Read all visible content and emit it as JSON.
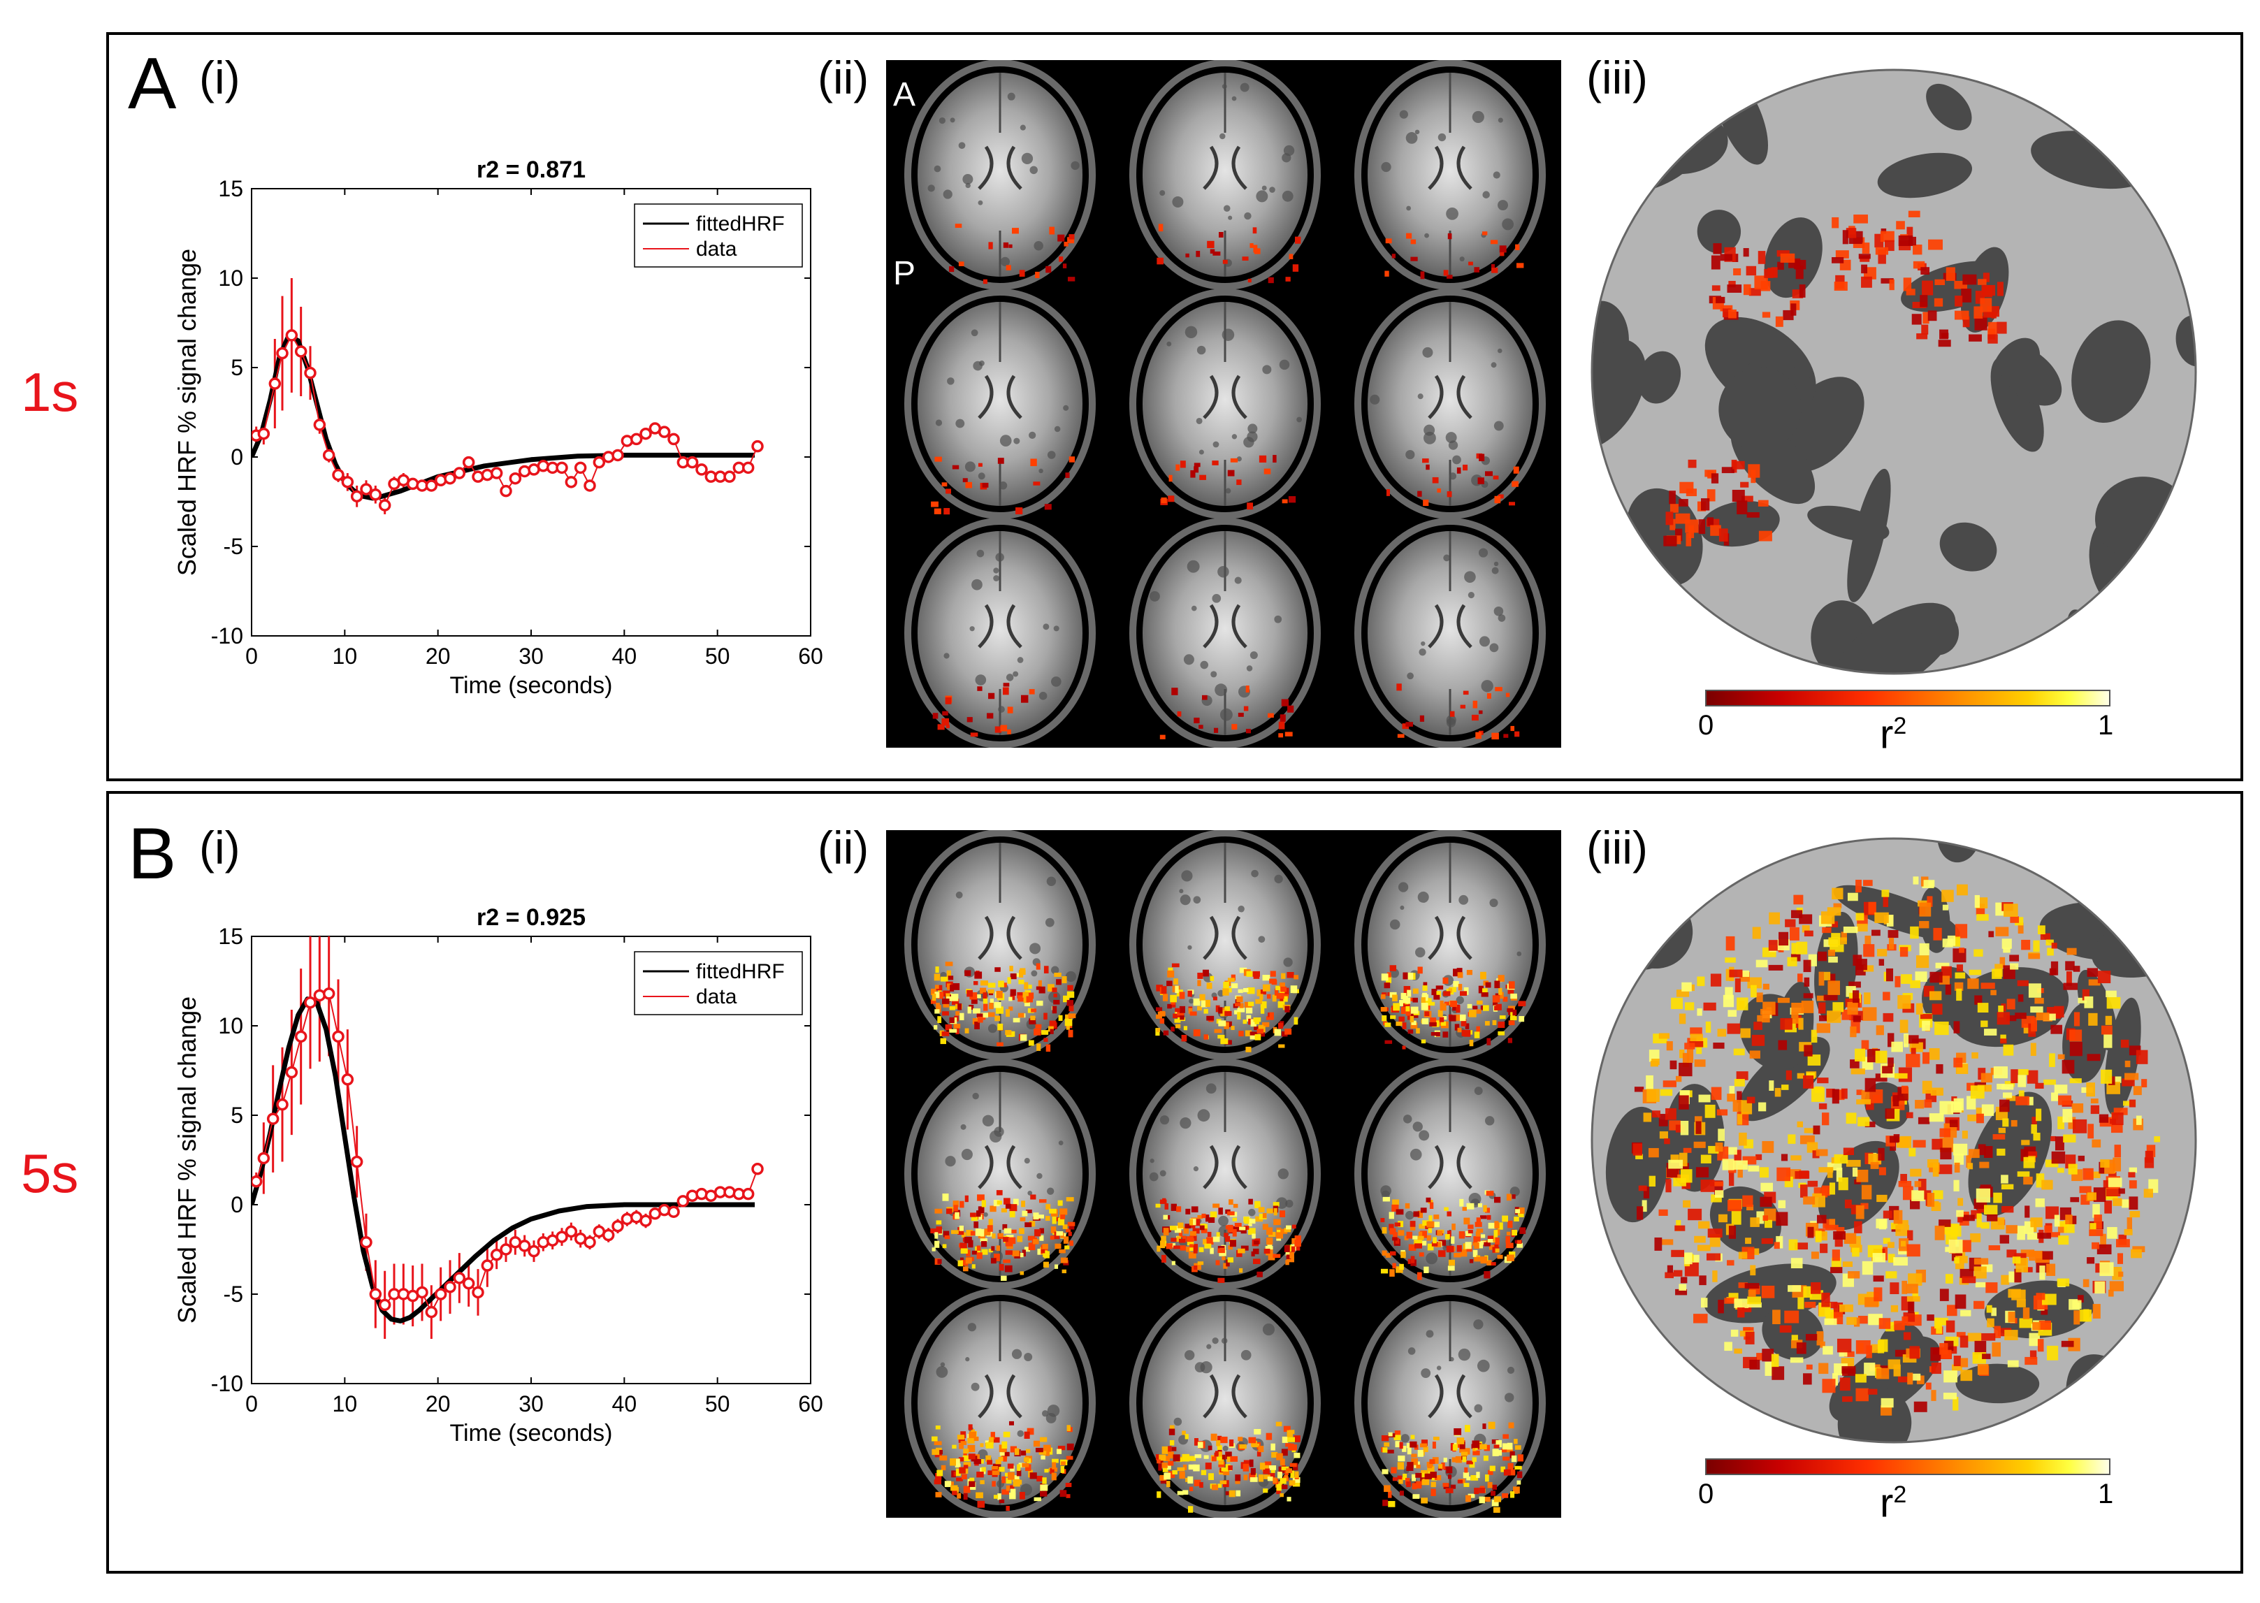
{
  "rows": [
    {
      "row_label": "1s",
      "panel_letter": "A",
      "sub_labels": [
        "(i)",
        "(ii)",
        "(iii)"
      ],
      "brain_orientation": {
        "anterior": "A",
        "posterior": "P"
      },
      "colorbar": {
        "min_label": "0",
        "max_label": "1",
        "label_base": "r",
        "label_exp": "2"
      },
      "activation_level": 0.08,
      "chart": {
        "r2_label": "r2 = 0.871",
        "ylabel": "Scaled HRF % signal change",
        "xlabel": "Time (seconds)"
      }
    },
    {
      "row_label": "5s",
      "panel_letter": "B",
      "sub_labels": [
        "(i)",
        "(ii)",
        "(iii)"
      ],
      "brain_orientation": {
        "anterior": "",
        "posterior": ""
      },
      "colorbar": {
        "min_label": "0",
        "max_label": "1",
        "label_base": "r",
        "label_exp": "2"
      },
      "activation_level": 0.9,
      "chart": {
        "r2_label": "r2 = 0.925",
        "ylabel": "Scaled HRF % signal change",
        "xlabel": "Time (seconds)"
      }
    }
  ],
  "colors": {
    "data": "#e8141b",
    "fit": "#000000",
    "brain_bg": "#000000",
    "flat_light": "#b4b4b4",
    "flat_dark": "#4a4a4a"
  },
  "chart_data": [
    {
      "type": "line",
      "title": "r2 = 0.871",
      "xlabel": "Time (seconds)",
      "ylabel": "Scaled HRF % signal change",
      "xlim": [
        0,
        60
      ],
      "ylim": [
        -10,
        15
      ],
      "xticks": [
        0,
        10,
        20,
        30,
        40,
        50,
        60
      ],
      "yticks": [
        -10,
        -5,
        0,
        5,
        10,
        15
      ],
      "legend": {
        "entries": [
          "fittedHRF",
          "data"
        ],
        "placement": "top-right"
      },
      "series": [
        {
          "name": "fittedHRF",
          "x": [
            0,
            1,
            2,
            3,
            4,
            5,
            6,
            7,
            8,
            9,
            10,
            11,
            12,
            13,
            14,
            16,
            18,
            20,
            25,
            30,
            35,
            40,
            45,
            50,
            54
          ],
          "y": [
            0,
            1.2,
            3.2,
            5.6,
            6.8,
            6.5,
            5.0,
            3.0,
            1.0,
            -0.4,
            -1.4,
            -1.9,
            -2.2,
            -2.3,
            -2.2,
            -1.9,
            -1.5,
            -1.1,
            -0.5,
            -0.15,
            0.05,
            0.1,
            0.1,
            0.1,
            0.1
          ]
        },
        {
          "name": "data",
          "x": [
            0.5,
            1.3,
            2.5,
            3.3,
            4.3,
            5.3,
            6.3,
            7.3,
            8.3,
            9.3,
            10.3,
            11.3,
            12.3,
            13.3,
            14.3,
            15.3,
            16.3,
            17.3,
            18.3,
            19.3,
            20.3,
            21.3,
            22.3,
            23.3,
            24.3,
            25.3,
            26.3,
            27.3,
            28.3,
            29.3,
            30.3,
            31.3,
            32.3,
            33.3,
            34.3,
            35.3,
            36.3,
            37.3,
            38.3,
            39.3,
            40.3,
            41.3,
            42.3,
            43.3,
            44.3,
            45.3,
            46.3,
            47.3,
            48.3,
            49.3,
            50.3,
            51.3,
            52.3,
            53.3,
            54.3
          ],
          "y": [
            1.2,
            1.3,
            4.1,
            5.8,
            6.8,
            5.9,
            4.7,
            1.8,
            0.1,
            -1.0,
            -1.4,
            -2.2,
            -1.8,
            -2.1,
            -2.7,
            -1.5,
            -1.3,
            -1.5,
            -1.6,
            -1.6,
            -1.3,
            -1.2,
            -0.9,
            -0.3,
            -1.1,
            -1.0,
            -0.9,
            -1.9,
            -1.2,
            -0.8,
            -0.7,
            -0.5,
            -0.6,
            -0.6,
            -1.4,
            -0.6,
            -1.6,
            -0.3,
            0.0,
            0.1,
            0.9,
            1.0,
            1.3,
            1.6,
            1.4,
            1.0,
            -0.3,
            -0.3,
            -0.7,
            -1.1,
            -1.1,
            -1.1,
            -0.6,
            -0.6,
            0.6
          ],
          "error": [
            0.5,
            0.6,
            2.5,
            3.2,
            3.2,
            2.5,
            1.5,
            0.5,
            0.4,
            0.4,
            0.5,
            0.6,
            0.5,
            0.5,
            0.5,
            0.4,
            0.4,
            0.3,
            0.3,
            0.3,
            0.3,
            0.3,
            0.3,
            0.3,
            0.3,
            0.3,
            0.3,
            0.3,
            0.3,
            0.3,
            0.3,
            0.3,
            0.3,
            0.3,
            0.3,
            0.3,
            0.3,
            0.3,
            0.3,
            0.3,
            0.3,
            0.3,
            0.3,
            0.3,
            0.3,
            0.3,
            0.3,
            0.3,
            0.3,
            0.3,
            0.3,
            0.3,
            0.3,
            0.3,
            0.3
          ]
        }
      ]
    },
    {
      "type": "line",
      "title": "r2 = 0.925",
      "xlabel": "Time (seconds)",
      "ylabel": "Scaled HRF % signal change",
      "xlim": [
        0,
        60
      ],
      "ylim": [
        -10,
        15
      ],
      "xticks": [
        0,
        10,
        20,
        30,
        40,
        50,
        60
      ],
      "yticks": [
        -10,
        -5,
        0,
        5,
        10,
        15
      ],
      "legend": {
        "entries": [
          "fittedHRF",
          "data"
        ],
        "placement": "top-right"
      },
      "series": [
        {
          "name": "fittedHRF",
          "x": [
            0,
            1,
            2,
            3,
            4,
            5,
            6,
            7,
            8,
            9,
            10,
            11,
            12,
            13,
            14,
            15,
            16,
            17,
            18,
            19,
            20,
            22,
            24,
            26,
            28,
            30,
            33,
            36,
            40,
            45,
            50,
            54
          ],
          "y": [
            0,
            1.8,
            4.0,
            6.5,
            8.8,
            10.6,
            11.5,
            11.3,
            9.8,
            7.2,
            3.8,
            0.4,
            -2.6,
            -4.6,
            -5.9,
            -6.4,
            -6.5,
            -6.3,
            -5.9,
            -5.4,
            -4.9,
            -3.9,
            -2.9,
            -2.0,
            -1.3,
            -0.8,
            -0.35,
            -0.1,
            0.0,
            0.0,
            0.0,
            0.0
          ]
        },
        {
          "name": "data",
          "x": [
            0.5,
            1.3,
            2.3,
            3.3,
            4.3,
            5.3,
            6.3,
            7.3,
            8.3,
            9.3,
            10.3,
            11.3,
            12.3,
            13.3,
            14.3,
            15.3,
            16.3,
            17.3,
            18.3,
            19.3,
            20.3,
            21.3,
            22.3,
            23.3,
            24.3,
            25.3,
            26.3,
            27.3,
            28.3,
            29.3,
            30.3,
            31.3,
            32.3,
            33.3,
            34.3,
            35.3,
            36.3,
            37.3,
            38.3,
            39.3,
            40.3,
            41.3,
            42.3,
            43.3,
            44.3,
            45.3,
            46.3,
            47.3,
            48.3,
            49.3,
            50.3,
            51.3,
            52.3,
            53.3,
            54.3
          ],
          "y": [
            1.3,
            2.6,
            4.8,
            5.6,
            7.4,
            9.4,
            11.3,
            11.7,
            11.8,
            9.4,
            7.0,
            2.4,
            -2.1,
            -5.0,
            -5.6,
            -5.0,
            -5.0,
            -5.1,
            -4.9,
            -6.0,
            -5.0,
            -4.6,
            -4.1,
            -4.4,
            -4.9,
            -3.4,
            -2.8,
            -2.5,
            -2.1,
            -2.3,
            -2.6,
            -2.1,
            -2.0,
            -1.8,
            -1.5,
            -1.9,
            -2.1,
            -1.5,
            -1.7,
            -1.2,
            -0.8,
            -0.7,
            -0.9,
            -0.5,
            -0.3,
            -0.4,
            0.2,
            0.5,
            0.6,
            0.5,
            0.7,
            0.7,
            0.6,
            0.6,
            2.0
          ],
          "error": [
            0.5,
            2.0,
            3.0,
            3.2,
            3.5,
            3.8,
            3.7,
            3.7,
            3.5,
            3.2,
            2.8,
            2.0,
            1.6,
            1.9,
            1.9,
            1.7,
            1.7,
            1.7,
            1.6,
            1.5,
            1.5,
            1.5,
            1.4,
            1.3,
            1.3,
            1.2,
            0.8,
            0.7,
            0.7,
            0.6,
            0.6,
            0.5,
            0.5,
            0.5,
            0.5,
            0.5,
            0.4,
            0.4,
            0.4,
            0.4,
            0.4,
            0.4,
            0.4,
            0.3,
            0.3,
            0.3,
            0.3,
            0.3,
            0.3,
            0.3,
            0.3,
            0.3,
            0.3,
            0.3,
            0.3
          ]
        }
      ]
    }
  ]
}
